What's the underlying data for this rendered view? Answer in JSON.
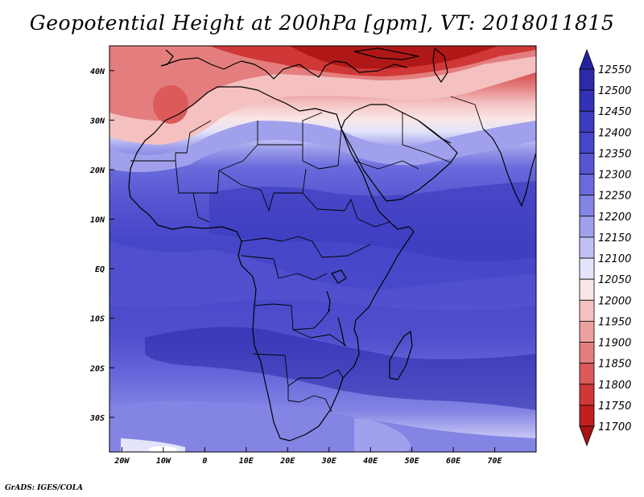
{
  "title": "Geopotential Height at 200hPa [gpm], VT: 2018011815",
  "credit": "GrADS: IGES/COLA",
  "map": {
    "lon_range": [
      -23,
      80
    ],
    "lat_range": [
      -37,
      45
    ],
    "lon_ticks": [
      {
        "value": -20,
        "label": "20W"
      },
      {
        "value": -10,
        "label": "10W"
      },
      {
        "value": 0,
        "label": "0"
      },
      {
        "value": 10,
        "label": "10E"
      },
      {
        "value": 20,
        "label": "20E"
      },
      {
        "value": 30,
        "label": "30E"
      },
      {
        "value": 40,
        "label": "40E"
      },
      {
        "value": 50,
        "label": "50E"
      },
      {
        "value": 60,
        "label": "60E"
      },
      {
        "value": 70,
        "label": "70E"
      }
    ],
    "lat_ticks": [
      {
        "value": 40,
        "label": "40N"
      },
      {
        "value": 30,
        "label": "30N"
      },
      {
        "value": 20,
        "label": "20N"
      },
      {
        "value": 10,
        "label": "10N"
      },
      {
        "value": 0,
        "label": "EQ"
      },
      {
        "value": -10,
        "label": "10S"
      },
      {
        "value": -20,
        "label": "20S"
      },
      {
        "value": -30,
        "label": "30S"
      }
    ]
  },
  "colorbar": {
    "levels": [
      "12550",
      "12500",
      "12450",
      "12400",
      "12350",
      "12300",
      "12250",
      "12200",
      "12150",
      "12100",
      "12050",
      "12000",
      "11950",
      "11900",
      "11850",
      "11800",
      "11750",
      "11700"
    ],
    "colors": [
      "#2323a0",
      "#2a2aaa",
      "#3232b6",
      "#3c3cbe",
      "#4646c8",
      "#5656d2",
      "#6a6adc",
      "#8484e4",
      "#a0a0ec",
      "#c0c0f4",
      "#e4e4fa",
      "#fae6e6",
      "#f4c0c0",
      "#eca0a0",
      "#e47e7e",
      "#dc5a5a",
      "#d03838",
      "#c02020",
      "#a81414"
    ]
  }
}
